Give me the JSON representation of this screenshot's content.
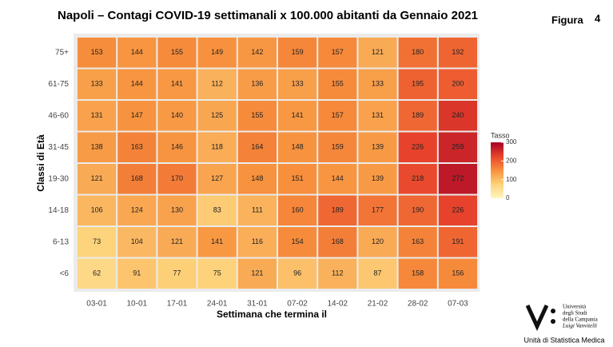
{
  "chart_data": {
    "type": "heatmap",
    "title": "Napoli – Contagi COVID-19 settimanali x 100.000 abitanti da Gennaio 2021",
    "x_label": "Settimana che termina il",
    "y_label": "Classi di Età",
    "categories": [
      "03-01",
      "10-01",
      "17-01",
      "24-01",
      "31-01",
      "07-02",
      "14-02",
      "21-02",
      "28-02",
      "07-03"
    ],
    "rows": [
      "75+",
      "61-75",
      "46-60",
      "31-45",
      "19-30",
      "14-18",
      "6-13",
      "<6"
    ],
    "values": [
      [
        153,
        144,
        155,
        149,
        142,
        159,
        157,
        121,
        180,
        192
      ],
      [
        133,
        144,
        141,
        112,
        136,
        133,
        155,
        133,
        195,
        200
      ],
      [
        131,
        147,
        140,
        125,
        155,
        141,
        157,
        131,
        189,
        240
      ],
      [
        138,
        163,
        146,
        118,
        164,
        148,
        159,
        139,
        226,
        259
      ],
      [
        121,
        168,
        170,
        127,
        148,
        151,
        144,
        139,
        218,
        272
      ],
      [
        106,
        124,
        130,
        83,
        111,
        160,
        189,
        177,
        190,
        226
      ],
      [
        73,
        104,
        121,
        141,
        116,
        154,
        168,
        120,
        163,
        191
      ],
      [
        62,
        91,
        77,
        75,
        121,
        96,
        112,
        87,
        158,
        156
      ]
    ],
    "legend_title": "Tasso",
    "zlim": [
      0,
      300
    ],
    "zticks": [
      0,
      100,
      200,
      300
    ],
    "colorscale": [
      "#fff7c0",
      "#fdd27a",
      "#f7903c",
      "#e8432b",
      "#a50026"
    ]
  },
  "page": {
    "figure_label": "Figura",
    "figure_number": "4",
    "logo_lines": [
      "Università",
      "degli Studi",
      "della Campania",
      "Luigi Vanvitelli"
    ],
    "unit": "Unità di Statistica Medica"
  }
}
